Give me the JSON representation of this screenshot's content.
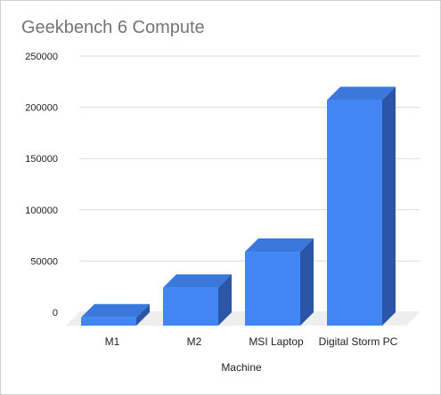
{
  "chart_data": {
    "type": "bar",
    "title": "Geekbench 6 Compute",
    "xlabel": "Machine",
    "ylabel": "",
    "categories": [
      "M1",
      "M2",
      "MSI Laptop",
      "Digital Storm PC"
    ],
    "series": [
      {
        "values": [
          8000,
          37000,
          72000,
          220000
        ]
      }
    ],
    "ylim": [
      0,
      250000
    ],
    "yticks": [
      0,
      50000,
      100000,
      150000,
      200000,
      250000
    ],
    "grid": true,
    "legend": "none",
    "style": "3d"
  },
  "colors": {
    "bar_front": "#4285f4",
    "bar_top": "#3a78db",
    "bar_side": "#2b55a6",
    "floor": "#eeeeee",
    "grid": "#d9d9d9",
    "text": "#222222",
    "title": "#757575"
  }
}
